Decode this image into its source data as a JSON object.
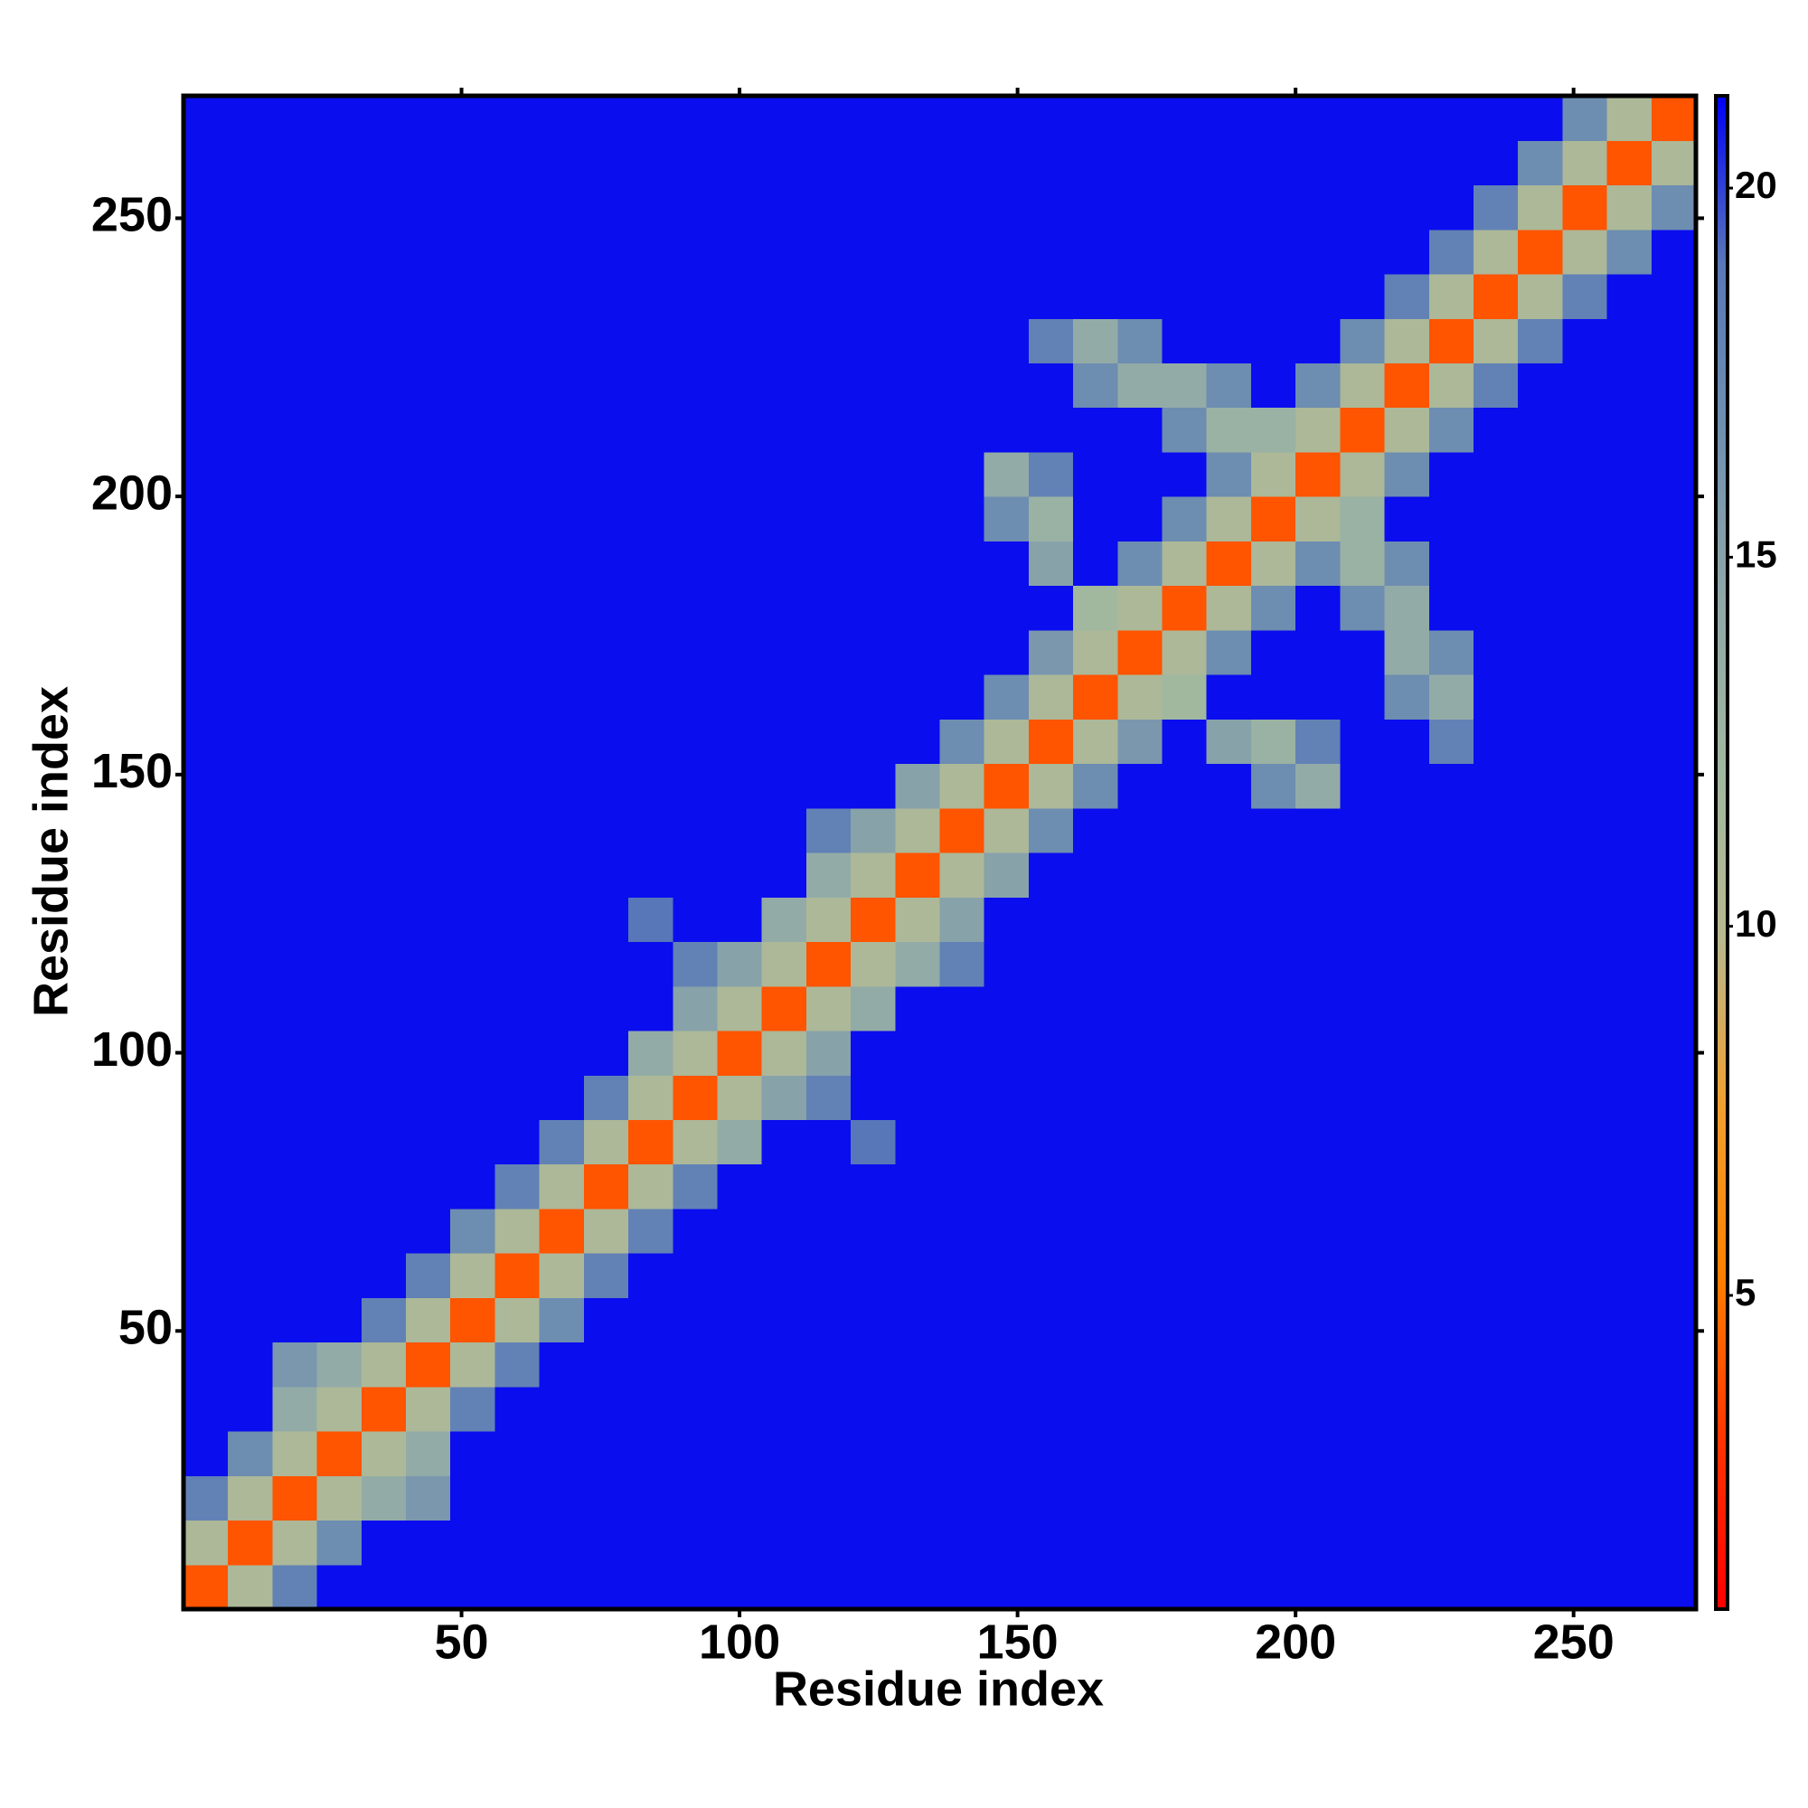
{
  "chart_data": {
    "type": "heatmap",
    "x_label": "Residue index",
    "y_label": "Residue index",
    "xbins": [
      0,
      8,
      16,
      24,
      32,
      40,
      48,
      56,
      64,
      72,
      80,
      88,
      96,
      104,
      112,
      120,
      128,
      136,
      144,
      152,
      160,
      168,
      176,
      184,
      192,
      200,
      208,
      216,
      224,
      232,
      240,
      248,
      256,
      264,
      272
    ],
    "ybins": [
      0,
      8,
      16,
      24,
      32,
      40,
      48,
      56,
      64,
      72,
      80,
      88,
      96,
      104,
      112,
      120,
      128,
      136,
      144,
      152,
      160,
      168,
      176,
      184,
      192,
      200,
      208,
      216,
      224,
      232,
      240,
      248,
      256,
      264,
      272
    ],
    "xlim": [
      0,
      272
    ],
    "ylim": [
      0,
      272
    ],
    "xticks": [
      50,
      100,
      150,
      200,
      250
    ],
    "yticks": [
      50,
      100,
      150,
      200,
      250
    ],
    "zlim": [
      0.75,
      21.25
    ],
    "zticks": [
      5,
      10,
      15,
      20
    ],
    "colors": [
      "#ff0000",
      "#ff3300",
      "#ff8000",
      "#f0a030",
      "#b8b890",
      "#a0b8a0",
      "#90a8a8",
      "#7090b0",
      "#5878b8",
      "#0000f5"
    ],
    "z": [
      [
        4,
        11,
        18,
        21,
        21,
        21,
        21,
        21,
        21,
        21,
        21,
        21,
        21,
        21,
        21,
        21,
        21,
        21,
        21,
        21,
        21,
        21,
        21,
        21,
        21,
        21,
        21,
        21,
        21,
        21,
        21,
        21,
        21,
        21
      ],
      [
        11,
        4,
        11,
        17,
        21,
        21,
        21,
        21,
        21,
        21,
        21,
        21,
        21,
        21,
        21,
        21,
        21,
        21,
        21,
        21,
        21,
        21,
        21,
        21,
        21,
        21,
        21,
        21,
        21,
        21,
        21,
        21,
        21,
        21
      ],
      [
        18,
        11,
        4,
        11,
        14,
        16,
        21,
        21,
        21,
        21,
        21,
        21,
        21,
        21,
        21,
        21,
        21,
        21,
        21,
        21,
        21,
        21,
        21,
        21,
        21,
        21,
        21,
        21,
        21,
        21,
        21,
        21,
        21,
        21
      ],
      [
        21,
        17,
        11,
        4,
        11,
        14,
        21,
        21,
        21,
        21,
        21,
        21,
        21,
        21,
        21,
        21,
        21,
        21,
        21,
        21,
        21,
        21,
        21,
        21,
        21,
        21,
        21,
        21,
        21,
        21,
        21,
        21,
        21,
        21
      ],
      [
        21,
        21,
        14,
        11,
        4,
        11,
        18,
        21,
        21,
        21,
        21,
        21,
        21,
        21,
        21,
        21,
        21,
        21,
        21,
        21,
        21,
        21,
        21,
        21,
        21,
        21,
        21,
        21,
        21,
        21,
        21,
        21,
        21,
        21
      ],
      [
        21,
        21,
        16,
        14,
        11,
        4,
        11,
        18,
        21,
        21,
        21,
        21,
        21,
        21,
        21,
        21,
        21,
        21,
        21,
        21,
        21,
        21,
        21,
        21,
        21,
        21,
        21,
        21,
        21,
        21,
        21,
        21,
        21,
        21
      ],
      [
        21,
        21,
        21,
        21,
        18,
        11,
        4,
        11,
        17,
        21,
        21,
        21,
        21,
        21,
        21,
        21,
        21,
        21,
        21,
        21,
        21,
        21,
        21,
        21,
        21,
        21,
        21,
        21,
        21,
        21,
        21,
        21,
        21,
        21
      ],
      [
        21,
        21,
        21,
        21,
        21,
        18,
        11,
        4,
        11,
        18,
        21,
        21,
        21,
        21,
        21,
        21,
        21,
        21,
        21,
        21,
        21,
        21,
        21,
        21,
        21,
        21,
        21,
        21,
        21,
        21,
        21,
        21,
        21,
        21
      ],
      [
        21,
        21,
        21,
        21,
        21,
        21,
        17,
        11,
        4,
        11,
        18,
        21,
        21,
        21,
        21,
        21,
        21,
        21,
        21,
        21,
        21,
        21,
        21,
        21,
        21,
        21,
        21,
        21,
        21,
        21,
        21,
        21,
        21,
        21
      ],
      [
        21,
        21,
        21,
        21,
        21,
        21,
        21,
        18,
        11,
        4,
        11,
        18,
        21,
        21,
        21,
        21,
        21,
        21,
        21,
        21,
        21,
        21,
        21,
        21,
        21,
        21,
        21,
        21,
        21,
        21,
        21,
        21,
        21,
        21
      ],
      [
        21,
        21,
        21,
        21,
        21,
        21,
        21,
        21,
        18,
        11,
        4,
        11,
        14,
        21,
        21,
        19,
        21,
        21,
        21,
        21,
        21,
        21,
        21,
        21,
        21,
        21,
        21,
        21,
        21,
        21,
        21,
        21,
        21,
        21
      ],
      [
        21,
        21,
        21,
        21,
        21,
        21,
        21,
        21,
        21,
        18,
        11,
        4,
        11,
        15,
        18,
        21,
        21,
        21,
        21,
        21,
        21,
        21,
        21,
        21,
        21,
        21,
        21,
        21,
        21,
        21,
        21,
        21,
        21,
        21
      ],
      [
        21,
        21,
        21,
        21,
        21,
        21,
        21,
        21,
        21,
        21,
        14,
        11,
        4,
        11,
        15,
        21,
        21,
        21,
        21,
        21,
        21,
        21,
        21,
        21,
        21,
        21,
        21,
        21,
        21,
        21,
        21,
        21,
        21,
        21
      ],
      [
        21,
        21,
        21,
        21,
        21,
        21,
        21,
        21,
        21,
        21,
        21,
        15,
        11,
        4,
        11,
        14,
        21,
        21,
        21,
        21,
        21,
        21,
        21,
        21,
        21,
        21,
        21,
        21,
        21,
        21,
        21,
        21,
        21,
        21
      ],
      [
        21,
        21,
        21,
        21,
        21,
        21,
        21,
        21,
        21,
        21,
        21,
        18,
        15,
        11,
        4,
        11,
        14,
        18,
        21,
        21,
        21,
        21,
        21,
        21,
        21,
        21,
        21,
        21,
        21,
        21,
        21,
        21,
        21,
        21
      ],
      [
        21,
        21,
        21,
        21,
        21,
        21,
        21,
        21,
        21,
        21,
        19,
        21,
        21,
        14,
        11,
        4,
        11,
        15,
        21,
        21,
        21,
        21,
        21,
        21,
        21,
        21,
        21,
        21,
        21,
        21,
        21,
        21,
        21,
        21
      ],
      [
        21,
        21,
        21,
        21,
        21,
        21,
        21,
        21,
        21,
        21,
        21,
        21,
        21,
        21,
        14,
        11,
        4,
        11,
        15,
        21,
        21,
        21,
        21,
        21,
        21,
        21,
        21,
        21,
        21,
        21,
        21,
        21,
        21,
        21
      ],
      [
        21,
        21,
        21,
        21,
        21,
        21,
        21,
        21,
        21,
        21,
        21,
        21,
        21,
        21,
        18,
        15,
        11,
        4,
        11,
        17,
        21,
        21,
        21,
        21,
        21,
        21,
        21,
        21,
        21,
        21,
        21,
        21,
        21,
        21
      ],
      [
        21,
        21,
        21,
        21,
        21,
        21,
        21,
        21,
        21,
        21,
        21,
        21,
        21,
        21,
        21,
        21,
        15,
        11,
        4,
        11,
        17,
        21,
        21,
        21,
        17,
        14,
        21,
        21,
        21,
        21,
        21,
        21,
        21,
        21
      ],
      [
        21,
        21,
        21,
        21,
        21,
        21,
        21,
        21,
        21,
        21,
        21,
        21,
        21,
        21,
        21,
        21,
        21,
        17,
        11,
        4,
        11,
        16,
        21,
        15,
        13,
        18,
        21,
        21,
        18,
        21,
        21,
        21,
        21,
        21
      ],
      [
        21,
        21,
        21,
        21,
        21,
        21,
        21,
        21,
        21,
        21,
        21,
        21,
        21,
        21,
        21,
        21,
        21,
        21,
        17,
        11,
        4,
        11,
        12,
        21,
        21,
        21,
        21,
        17,
        14,
        21,
        21,
        21,
        21,
        21
      ],
      [
        21,
        21,
        21,
        21,
        21,
        21,
        21,
        21,
        21,
        21,
        21,
        21,
        21,
        21,
        21,
        21,
        21,
        21,
        21,
        16,
        11,
        4,
        11,
        17,
        21,
        21,
        21,
        14,
        17,
        21,
        21,
        21,
        21,
        21
      ],
      [
        21,
        21,
        21,
        21,
        21,
        21,
        21,
        21,
        21,
        21,
        21,
        21,
        21,
        21,
        21,
        21,
        21,
        21,
        21,
        21,
        12,
        11,
        4,
        11,
        17,
        21,
        17,
        14,
        21,
        21,
        21,
        21,
        21,
        21
      ],
      [
        21,
        21,
        21,
        21,
        21,
        21,
        21,
        21,
        21,
        21,
        21,
        21,
        21,
        21,
        21,
        21,
        21,
        21,
        21,
        15,
        21,
        17,
        11,
        4,
        11,
        17,
        13,
        17,
        21,
        21,
        21,
        21,
        21,
        21
      ],
      [
        21,
        21,
        21,
        21,
        21,
        21,
        21,
        21,
        21,
        21,
        21,
        21,
        21,
        21,
        21,
        21,
        21,
        21,
        17,
        13,
        21,
        21,
        17,
        11,
        4,
        11,
        13,
        21,
        21,
        21,
        21,
        21,
        21,
        21
      ],
      [
        21,
        21,
        21,
        21,
        21,
        21,
        21,
        21,
        21,
        21,
        21,
        21,
        21,
        21,
        21,
        21,
        21,
        21,
        14,
        18,
        21,
        21,
        21,
        17,
        11,
        4,
        11,
        17,
        21,
        21,
        21,
        21,
        21,
        21
      ],
      [
        21,
        21,
        21,
        21,
        21,
        21,
        21,
        21,
        21,
        21,
        21,
        21,
        21,
        21,
        21,
        21,
        21,
        21,
        21,
        21,
        21,
        21,
        17,
        13,
        13,
        11,
        4,
        11,
        17,
        21,
        21,
        21,
        21,
        21
      ],
      [
        21,
        21,
        21,
        21,
        21,
        21,
        21,
        21,
        21,
        21,
        21,
        21,
        21,
        21,
        21,
        21,
        21,
        21,
        21,
        21,
        17,
        14,
        14,
        17,
        21,
        17,
        11,
        4,
        11,
        18,
        21,
        21,
        21,
        21
      ],
      [
        21,
        21,
        21,
        21,
        21,
        21,
        21,
        21,
        21,
        21,
        21,
        21,
        21,
        21,
        21,
        21,
        21,
        21,
        21,
        18,
        14,
        17,
        21,
        21,
        21,
        21,
        17,
        11,
        4,
        11,
        18,
        21,
        21,
        21
      ],
      [
        21,
        21,
        21,
        21,
        21,
        21,
        21,
        21,
        21,
        21,
        21,
        21,
        21,
        21,
        21,
        21,
        21,
        21,
        21,
        21,
        21,
        21,
        21,
        21,
        21,
        21,
        21,
        18,
        11,
        4,
        11,
        18,
        21,
        21
      ],
      [
        21,
        21,
        21,
        21,
        21,
        21,
        21,
        21,
        21,
        21,
        21,
        21,
        21,
        21,
        21,
        21,
        21,
        21,
        21,
        21,
        21,
        21,
        21,
        21,
        21,
        21,
        21,
        21,
        18,
        11,
        4,
        11,
        17,
        21
      ],
      [
        21,
        21,
        21,
        21,
        21,
        21,
        21,
        21,
        21,
        21,
        21,
        21,
        21,
        21,
        21,
        21,
        21,
        21,
        21,
        21,
        21,
        21,
        21,
        21,
        21,
        21,
        21,
        21,
        21,
        18,
        11,
        4,
        11,
        17
      ],
      [
        21,
        21,
        21,
        21,
        21,
        21,
        21,
        21,
        21,
        21,
        21,
        21,
        21,
        21,
        21,
        21,
        21,
        21,
        21,
        21,
        21,
        21,
        21,
        21,
        21,
        21,
        21,
        21,
        21,
        21,
        17,
        11,
        4,
        11
      ],
      [
        21,
        21,
        21,
        21,
        21,
        21,
        21,
        21,
        21,
        21,
        21,
        21,
        21,
        21,
        21,
        21,
        21,
        21,
        21,
        21,
        21,
        21,
        21,
        21,
        21,
        21,
        21,
        21,
        21,
        21,
        21,
        17,
        11,
        4
      ]
    ]
  }
}
